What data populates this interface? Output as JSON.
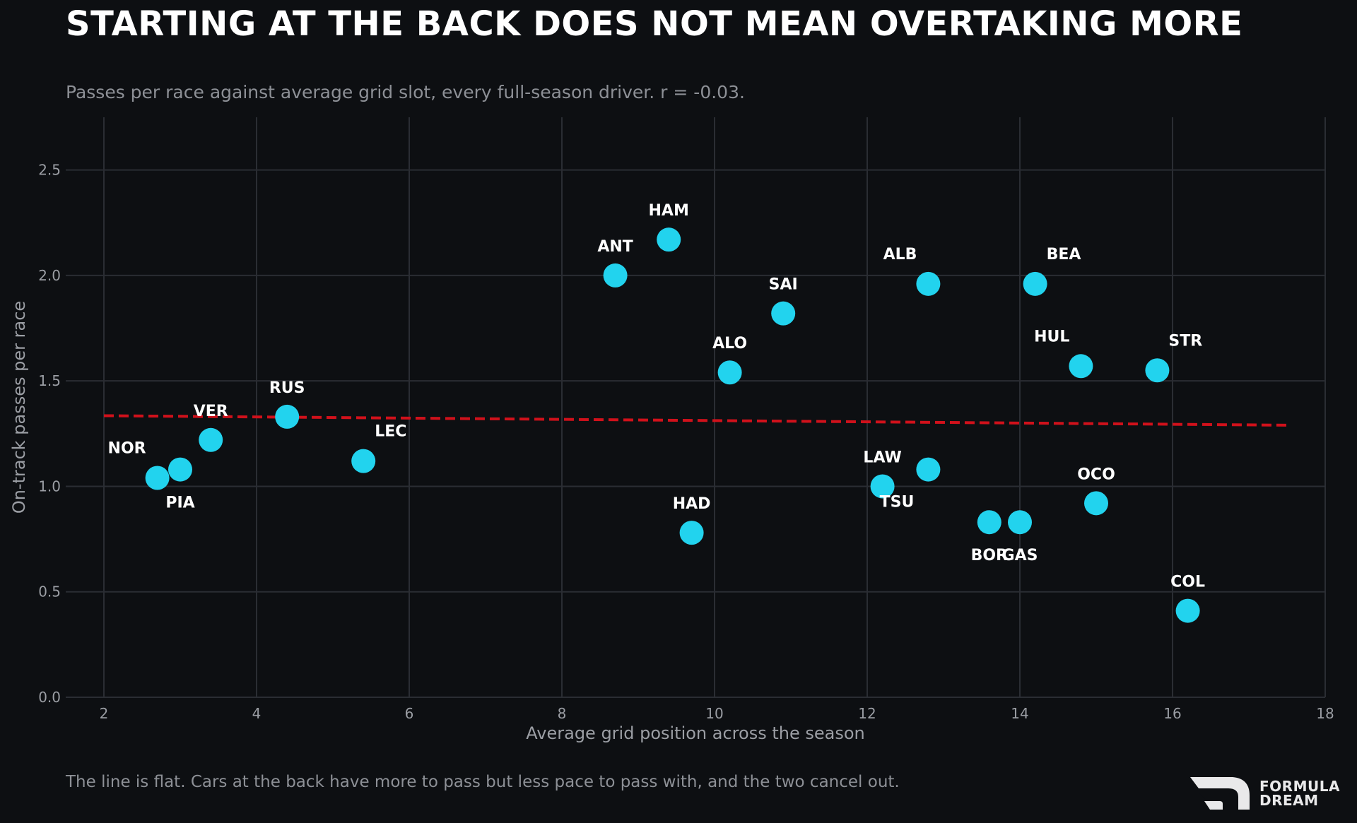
{
  "header": {
    "title": "STARTING AT THE BACK DOES NOT MEAN OVERTAKING MORE",
    "subtitle": "Passes per race against average grid slot, every full-season driver. r = -0.03."
  },
  "footer": {
    "note": "The line is flat. Cars at the back have more to pass but less pace to pass with, and the two cancel out.",
    "logo_line1": "FORMULA",
    "logo_line2": "DREAM"
  },
  "colors": {
    "background": "#0d0f12",
    "point": "#22d3ee",
    "trend": "#d0111b",
    "grid": "#2a2d33",
    "axis_text": "#9b9ea4"
  },
  "chart_data": {
    "type": "scatter",
    "xlabel": "Average grid position across the season",
    "ylabel": "On-track passes per race",
    "xlim": [
      1.5,
      18
    ],
    "ylim": [
      0,
      2.75
    ],
    "xticks": [
      2,
      4,
      6,
      8,
      10,
      12,
      14,
      16,
      18
    ],
    "yticks": [
      0.0,
      0.5,
      1.0,
      1.5,
      2.0,
      2.5
    ],
    "grid": true,
    "points": [
      {
        "label": "NOR",
        "x": 2.7,
        "y": 1.04,
        "label_pos": "upper-left"
      },
      {
        "label": "PIA",
        "x": 3.0,
        "y": 1.08,
        "label_pos": "below"
      },
      {
        "label": "VER",
        "x": 3.4,
        "y": 1.22,
        "label_pos": "above"
      },
      {
        "label": "RUS",
        "x": 4.4,
        "y": 1.33,
        "label_pos": "above"
      },
      {
        "label": "LEC",
        "x": 5.4,
        "y": 1.12,
        "label_pos": "upper-right"
      },
      {
        "label": "ANT",
        "x": 8.7,
        "y": 2.0,
        "label_pos": "above"
      },
      {
        "label": "HAM",
        "x": 9.4,
        "y": 2.17,
        "label_pos": "above"
      },
      {
        "label": "HAD",
        "x": 9.7,
        "y": 0.78,
        "label_pos": "above"
      },
      {
        "label": "ALO",
        "x": 10.2,
        "y": 1.54,
        "label_pos": "above"
      },
      {
        "label": "SAI",
        "x": 10.9,
        "y": 1.82,
        "label_pos": "above"
      },
      {
        "label": "LAW",
        "x": 12.2,
        "y": 1.0,
        "label_pos": "above"
      },
      {
        "label": "ALB",
        "x": 12.8,
        "y": 1.96,
        "label_pos": "upper-left"
      },
      {
        "label": "TSU",
        "x": 12.8,
        "y": 1.08,
        "label_pos": "below-right"
      },
      {
        "label": "BOR",
        "x": 13.6,
        "y": 0.83,
        "label_pos": "below"
      },
      {
        "label": "GAS",
        "x": 14.0,
        "y": 0.83,
        "label_pos": "below"
      },
      {
        "label": "BEA",
        "x": 14.2,
        "y": 1.96,
        "label_pos": "upper-right"
      },
      {
        "label": "HUL",
        "x": 14.8,
        "y": 1.57,
        "label_pos": "upper-left"
      },
      {
        "label": "OCO",
        "x": 15.0,
        "y": 0.92,
        "label_pos": "above"
      },
      {
        "label": "STR",
        "x": 15.8,
        "y": 1.55,
        "label_pos": "upper-right"
      },
      {
        "label": "COL",
        "x": 16.2,
        "y": 0.41,
        "label_pos": "above"
      }
    ],
    "trendline": {
      "style": "dashed",
      "x": [
        2.0,
        17.5
      ],
      "y": [
        1.335,
        1.29
      ]
    }
  }
}
